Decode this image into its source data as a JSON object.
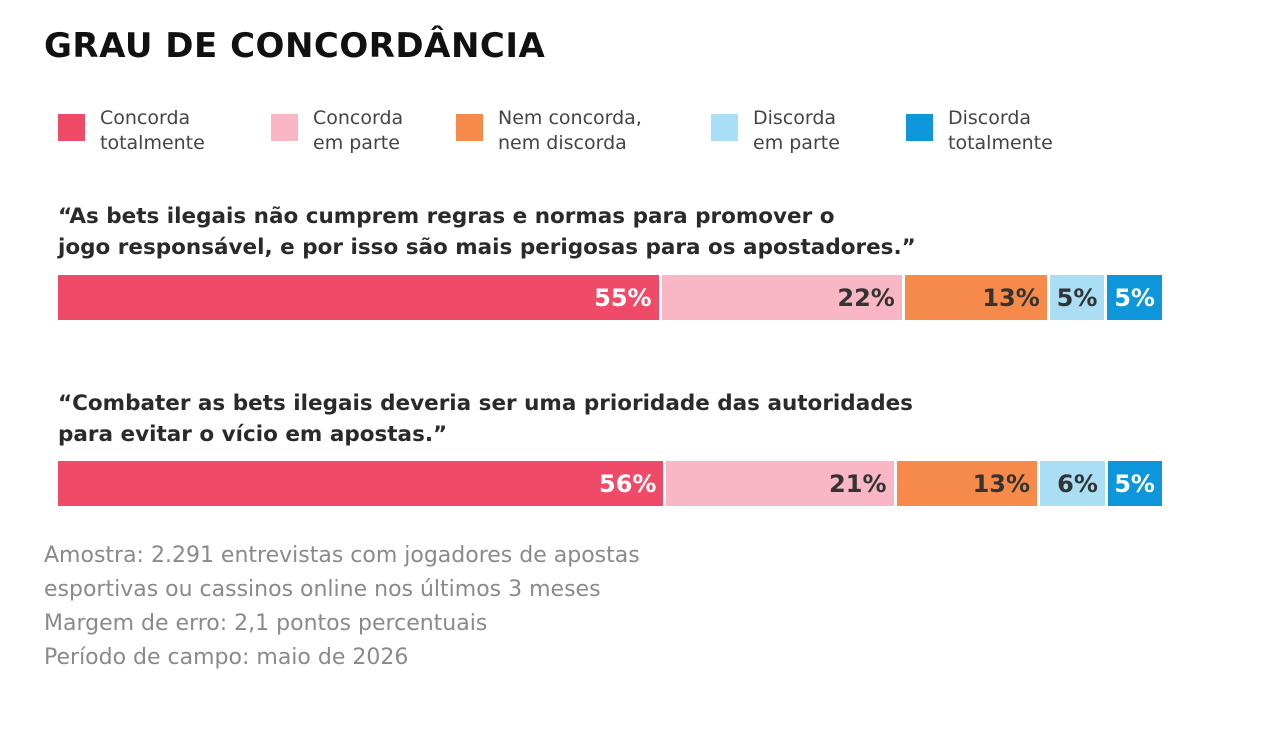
{
  "chart_data": {
    "type": "bar",
    "orientation": "horizontal",
    "stacked": true,
    "title": "GRAU DE CONCORDÂNCIA",
    "legend_position": "top",
    "categories": [
      "“As bets ilegais não cumprem regras e normas para promover o\n jogo responsável, e por isso são mais perigosas para os apostadores.”",
      "“Combater as bets ilegais deveria ser uma prioridade das autoridades\npara evitar o vício em apostas.”"
    ],
    "series": [
      {
        "name": "Concorda\ntotalmente",
        "color": "#ef4a68",
        "label_color": "#ffffff",
        "values": [
          55,
          56
        ],
        "labels": [
          "55%",
          "56%"
        ]
      },
      {
        "name": "Concorda\nem parte",
        "color": "#f9b6c4",
        "label_color": "#333333",
        "values": [
          22,
          21
        ],
        "labels": [
          "22%",
          "21%"
        ]
      },
      {
        "name": "Nem concorda,\nnem discorda",
        "color": "#f68a4b",
        "label_color": "#333333",
        "values": [
          13,
          13
        ],
        "labels": [
          "13%",
          "13%"
        ]
      },
      {
        "name": "Discorda\nem parte",
        "color": "#a9def5",
        "label_color": "#333333",
        "values": [
          5,
          6
        ],
        "labels": [
          "5%",
          "6%"
        ]
      },
      {
        "name": "Discorda\ntotalmente",
        "color": "#0e96da",
        "label_color": "#ffffff",
        "values": [
          5,
          5
        ],
        "labels": [
          "5%",
          "5%"
        ]
      }
    ],
    "xlim": [
      0,
      100
    ],
    "grid": false
  },
  "footnote": [
    "Amostra: 2.291 entrevistas com jogadores de apostas",
    "esportivas ou cassinos online nos últimos 3 meses",
    "Margem de erro: 2,1 pontos percentuais",
    "Período de campo: maio de 2026"
  ]
}
